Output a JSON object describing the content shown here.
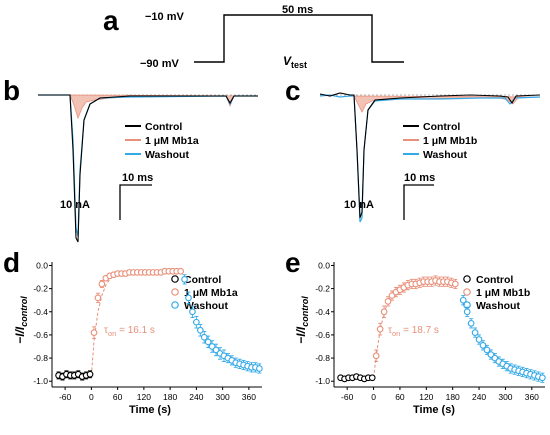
{
  "panels": {
    "a": "a",
    "b": "b",
    "c": "c",
    "d": "d",
    "e": "e"
  },
  "protocol": {
    "holding_label": "−90 mV",
    "step_label": "−10 mV",
    "duration_label": "50 ms",
    "vtest_main": "V",
    "vtest_sub": "test"
  },
  "trace_b": {
    "legend": [
      "Control",
      "1 μM Mb1a",
      "Washout"
    ],
    "scale_time": "10 ms",
    "scale_current": "10 nA"
  },
  "trace_c": {
    "legend": [
      "Control",
      "1 μM Mb1b",
      "Washout"
    ],
    "scale_time": "10 ms",
    "scale_current": "10 nA"
  },
  "colors": {
    "control": "#000000",
    "drug": "#e8907a",
    "washout": "#35a9e8",
    "drug_fill": "#f2c2b4"
  },
  "chart_data": [
    {
      "type": "scatter",
      "panel": "d",
      "xlabel": "Time (s)",
      "ylabel_main": "−I/I",
      "ylabel_sub": "control",
      "xlim": [
        -90,
        390
      ],
      "ylim": [
        -1.05,
        0.03
      ],
      "xticks": [
        -60,
        0,
        60,
        120,
        180,
        240,
        300,
        360
      ],
      "yticks": [
        0.0,
        -0.2,
        -0.4,
        -0.6,
        -0.8,
        -1.0
      ],
      "ytick_labels": [
        "0.0",
        "-0.2",
        "-0.4",
        "-0.6",
        "-0.8",
        "-1.0"
      ],
      "annotation_main": "τ",
      "annotation_sub": "on",
      "annotation_value": " = 16.1 s",
      "legend": [
        "Control",
        "1 μM Mb1a",
        "Washout"
      ],
      "series": [
        {
          "name": "Control",
          "x": [
            -75,
            -66,
            -57,
            -48,
            -39,
            -30,
            -21,
            -12,
            -3
          ],
          "y": [
            -0.95,
            -0.96,
            -0.94,
            -0.95,
            -0.95,
            -0.94,
            -0.96,
            -0.95,
            -0.94
          ],
          "err": [
            0.03,
            0.03,
            0.03,
            0.03,
            0.03,
            0.03,
            0.03,
            0.03,
            0.03
          ]
        },
        {
          "name": "1 μM Mb1a",
          "x": [
            6,
            15,
            24,
            33,
            42,
            51,
            60,
            69,
            78,
            87,
            96,
            105,
            114,
            123,
            132,
            141,
            150,
            159,
            168,
            177,
            186,
            195,
            204
          ],
          "y": [
            -0.58,
            -0.28,
            -0.16,
            -0.11,
            -0.09,
            -0.08,
            -0.07,
            -0.07,
            -0.07,
            -0.06,
            -0.06,
            -0.06,
            -0.06,
            -0.06,
            -0.06,
            -0.06,
            -0.06,
            -0.06,
            -0.05,
            -0.05,
            -0.05,
            -0.05,
            -0.05
          ],
          "err": [
            0.05,
            0.04,
            0.03,
            0.02,
            0.02,
            0.02,
            0.02,
            0.02,
            0.02,
            0.02,
            0.02,
            0.02,
            0.02,
            0.02,
            0.02,
            0.02,
            0.02,
            0.02,
            0.02,
            0.02,
            0.02,
            0.02,
            0.02
          ]
        },
        {
          "name": "Washout",
          "x": [
            213,
            222,
            231,
            240,
            249,
            258,
            267,
            276,
            285,
            294,
            303,
            312,
            321,
            330,
            339,
            348,
            357,
            366,
            375,
            384
          ],
          "y": [
            -0.12,
            -0.28,
            -0.4,
            -0.49,
            -0.56,
            -0.62,
            -0.66,
            -0.7,
            -0.73,
            -0.76,
            -0.78,
            -0.8,
            -0.82,
            -0.84,
            -0.85,
            -0.86,
            -0.87,
            -0.88,
            -0.88,
            -0.89
          ],
          "err": [
            0.04,
            0.05,
            0.05,
            0.05,
            0.05,
            0.05,
            0.05,
            0.05,
            0.05,
            0.05,
            0.05,
            0.04,
            0.04,
            0.04,
            0.04,
            0.04,
            0.04,
            0.04,
            0.04,
            0.04
          ]
        }
      ],
      "fit": {
        "x": [
          0,
          6,
          15,
          24,
          33,
          42,
          51,
          60,
          75,
          90
        ],
        "y": [
          -0.95,
          -0.65,
          -0.4,
          -0.26,
          -0.17,
          -0.12,
          -0.09,
          -0.08,
          -0.065,
          -0.06
        ]
      }
    },
    {
      "type": "scatter",
      "panel": "e",
      "xlabel": "Time (s)",
      "ylabel_main": "−I/I",
      "ylabel_sub": "control",
      "xlim": [
        -90,
        390
      ],
      "ylim": [
        -1.05,
        0.03
      ],
      "xticks": [
        -60,
        0,
        60,
        120,
        180,
        240,
        300,
        360
      ],
      "yticks": [
        0.0,
        -0.2,
        -0.4,
        -0.6,
        -0.8,
        -1.0
      ],
      "ytick_labels": [
        "0.0",
        "-0.2",
        "-0.4",
        "-0.6",
        "-0.8",
        "-1.0"
      ],
      "annotation_main": "τ",
      "annotation_sub": "on",
      "annotation_value": " = 18.7 s",
      "legend": [
        "Control",
        "1 μM Mb1b",
        "Washout"
      ],
      "series": [
        {
          "name": "Control",
          "x": [
            -75,
            -66,
            -57,
            -48,
            -39,
            -30,
            -21,
            -12,
            -3
          ],
          "y": [
            -0.97,
            -0.98,
            -0.97,
            -0.97,
            -0.96,
            -0.97,
            -0.98,
            -0.97,
            -0.97
          ],
          "err": [
            0.02,
            0.02,
            0.02,
            0.02,
            0.02,
            0.02,
            0.02,
            0.02,
            0.02
          ]
        },
        {
          "name": "1 μM Mb1b",
          "x": [
            6,
            15,
            24,
            33,
            42,
            51,
            60,
            69,
            78,
            87,
            96,
            105,
            114,
            123,
            132,
            141,
            150,
            159,
            168,
            177,
            186
          ],
          "y": [
            -0.78,
            -0.55,
            -0.4,
            -0.31,
            -0.26,
            -0.23,
            -0.21,
            -0.19,
            -0.17,
            -0.16,
            -0.16,
            -0.15,
            -0.14,
            -0.14,
            -0.14,
            -0.13,
            -0.14,
            -0.14,
            -0.14,
            -0.15,
            -0.16
          ],
          "err": [
            0.05,
            0.05,
            0.05,
            0.04,
            0.04,
            0.04,
            0.04,
            0.04,
            0.04,
            0.04,
            0.04,
            0.04,
            0.04,
            0.04,
            0.04,
            0.04,
            0.04,
            0.04,
            0.04,
            0.04,
            0.04
          ]
        },
        {
          "name": "Washout",
          "x": [
            204,
            213,
            222,
            231,
            240,
            249,
            258,
            267,
            276,
            285,
            294,
            303,
            312,
            321,
            330,
            339,
            348,
            357,
            366,
            375,
            384
          ],
          "y": [
            -0.3,
            -0.4,
            -0.5,
            -0.58,
            -0.64,
            -0.69,
            -0.73,
            -0.77,
            -0.8,
            -0.83,
            -0.85,
            -0.87,
            -0.89,
            -0.9,
            -0.91,
            -0.92,
            -0.93,
            -0.94,
            -0.95,
            -0.96,
            -0.97
          ],
          "err": [
            0.04,
            0.04,
            0.04,
            0.04,
            0.04,
            0.04,
            0.04,
            0.04,
            0.04,
            0.04,
            0.04,
            0.04,
            0.04,
            0.04,
            0.04,
            0.04,
            0.04,
            0.04,
            0.04,
            0.04,
            0.04
          ]
        }
      ],
      "fit": {
        "x": [
          0,
          6,
          15,
          24,
          33,
          42,
          51,
          60,
          75,
          90,
          105
        ],
        "y": [
          -0.97,
          -0.78,
          -0.56,
          -0.41,
          -0.31,
          -0.25,
          -0.21,
          -0.19,
          -0.17,
          -0.155,
          -0.15
        ]
      }
    }
  ]
}
